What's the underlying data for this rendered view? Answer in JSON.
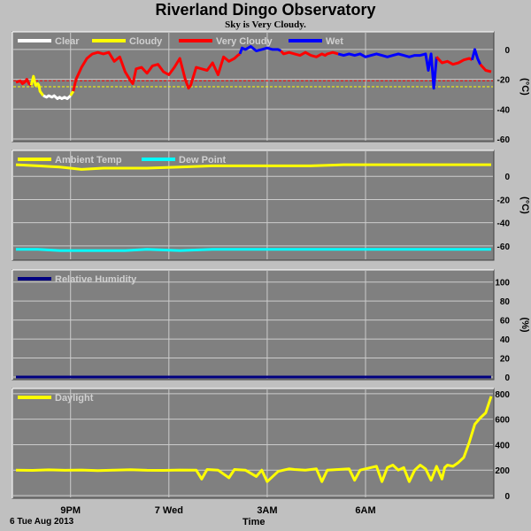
{
  "title": "Riverland Dingo Observatory",
  "subtitle": "Sky is Very Cloudy.",
  "date_label": "6 Tue Aug 2013",
  "x_axis_label": "Time",
  "colors": {
    "background": "#c0c0c0",
    "plot": "#808080",
    "grid": "#cccccc",
    "clear": "#ffffff",
    "cloudy": "#ffff00",
    "very_cloudy": "#ff0000",
    "wet": "#0000ff",
    "ambient": "#ffff00",
    "dew": "#00ffff",
    "humidity": "#000080",
    "daylight": "#ffff00"
  },
  "chart_data": [
    {
      "type": "line",
      "name": "sky",
      "legend": [
        "Clear",
        "Cloudy",
        "Very Cloudy",
        "Wet"
      ],
      "ylabel": "(°C)",
      "ylim": [
        -60,
        10
      ],
      "yticks": [
        0,
        -20,
        -40,
        -60
      ],
      "thresholds": [
        {
          "value": -25,
          "color": "#ffff00"
        },
        {
          "value": -21,
          "color": "#ff0000"
        }
      ],
      "series": [
        {
          "x": [
            0,
            0.8,
            1.2,
            1.6,
            2.0,
            2.4,
            2.8
          ],
          "y": [
            -22,
            -21,
            -23,
            -22,
            -20,
            -23,
            -24
          ],
          "legend": 2
        },
        {
          "x": [
            2.8,
            3.2,
            3.6,
            4.0,
            4.2,
            4.4,
            5.0
          ],
          "y": [
            -24,
            -18,
            -24,
            -23,
            -24,
            -28,
            -31
          ],
          "legend": 1
        },
        {
          "x": [
            5.0,
            5.6,
            6.0,
            6.6,
            7.0,
            7.6,
            8.0,
            8.4,
            8.9,
            9.4,
            10.0
          ],
          "y": [
            -31,
            -32,
            -31,
            -32,
            -31,
            -33,
            -32,
            -33,
            -32,
            -33,
            -31
          ],
          "legend": 0
        },
        {
          "x": [
            10.0,
            10.5
          ],
          "y": [
            -31,
            -28
          ],
          "legend": 1
        },
        {
          "x": [
            10.5,
            11,
            12,
            13,
            14,
            15,
            16,
            17,
            18,
            19,
            20,
            21,
            21.4,
            22,
            23,
            24,
            25,
            26,
            27,
            28,
            29,
            30,
            31,
            31.6,
            32,
            33,
            34,
            35,
            36,
            37,
            38,
            39,
            40,
            40.6,
            41
          ],
          "y": [
            -28,
            -20,
            -12,
            -6,
            -3,
            -2,
            -3,
            -2,
            -8,
            -5,
            -15,
            -21,
            -23,
            -13,
            -12,
            -16,
            -11,
            -10,
            -15,
            -17,
            -12,
            -6,
            -20,
            -26,
            -24,
            -12,
            -13,
            -14,
            -9,
            -17,
            -5,
            -8,
            -6,
            -4,
            -3
          ],
          "legend": 2
        },
        {
          "x": [
            41,
            41.4,
            42,
            43,
            44,
            45,
            46,
            47,
            48,
            48.5
          ],
          "y": [
            -3,
            1,
            0,
            2,
            -1,
            0,
            1,
            0,
            0,
            -1
          ],
          "legend": 3
        },
        {
          "x": [
            48.5,
            49,
            50,
            51,
            52,
            53,
            54,
            55,
            56,
            56.6,
            57,
            58,
            59
          ],
          "y": [
            -1,
            -3,
            -2,
            -3,
            -4,
            -2,
            -4,
            -5,
            -3,
            -4,
            -3,
            -2,
            -3
          ],
          "legend": 2
        },
        {
          "x": [
            59,
            60,
            61,
            62,
            63,
            64,
            65,
            66,
            67,
            68,
            69,
            70,
            71,
            72,
            73,
            74,
            75,
            75.5,
            76,
            76.5,
            77
          ],
          "y": [
            -3,
            -4,
            -3,
            -4,
            -3,
            -5,
            -4,
            -3,
            -4,
            -5,
            -4,
            -3,
            -4,
            -5,
            -4,
            -4,
            -3,
            -14,
            -3,
            -26,
            -5
          ],
          "legend": 3
        },
        {
          "x": [
            77,
            78,
            79,
            80,
            81,
            82,
            83,
            83.5
          ],
          "y": [
            -5,
            -9,
            -8,
            -10,
            -9,
            -7,
            -6,
            -7
          ],
          "legend": 2
        },
        {
          "x": [
            83.5,
            84,
            84.5,
            85
          ],
          "y": [
            -7,
            0,
            -6,
            -10
          ],
          "legend": 3
        },
        {
          "x": [
            85,
            86,
            87
          ],
          "y": [
            -10,
            -14,
            -15
          ],
          "legend": 2
        }
      ]
    },
    {
      "type": "line",
      "name": "temperature",
      "legend": [
        "Ambient Temp",
        "Dew Point"
      ],
      "ylabel": "(°C)",
      "ylim": [
        -70,
        20
      ],
      "yticks": [
        0,
        -20,
        -40,
        -60
      ],
      "series": [
        {
          "name": "Ambient Temp",
          "x": [
            0,
            4,
            8,
            12,
            16,
            20,
            24,
            30,
            36,
            42,
            48,
            54,
            60,
            66,
            72,
            78,
            84,
            87
          ],
          "y": [
            10,
            9,
            8,
            6,
            7,
            7,
            7,
            8,
            9,
            9,
            9,
            9,
            10,
            10,
            10,
            10,
            10,
            10
          ]
        },
        {
          "name": "Dew Point",
          "x": [
            0,
            4,
            8,
            12,
            16,
            20,
            24,
            30,
            36,
            42,
            48,
            54,
            60,
            66,
            72,
            78,
            84,
            87
          ],
          "y": [
            -63,
            -63,
            -64,
            -64,
            -64,
            -64,
            -63,
            -64,
            -63,
            -63,
            -63,
            -63,
            -63,
            -63,
            -63,
            -63,
            -63,
            -63
          ]
        }
      ]
    },
    {
      "type": "line",
      "name": "humidity",
      "legend": [
        "Relative Humidity"
      ],
      "ylabel": "(%)",
      "ylim": [
        0,
        110
      ],
      "yticks": [
        100,
        80,
        60,
        40,
        20,
        0
      ],
      "series": [
        {
          "name": "Relative Humidity",
          "x": [
            0,
            87
          ],
          "y": [
            0,
            0
          ]
        }
      ]
    },
    {
      "type": "line",
      "name": "daylight",
      "legend": [
        "Daylight"
      ],
      "ylabel": "",
      "ylim": [
        0,
        820
      ],
      "yticks": [
        800,
        600,
        400,
        200,
        0
      ],
      "series": [
        {
          "name": "Daylight",
          "x": [
            0,
            3,
            6,
            9,
            12,
            15,
            18,
            21,
            24,
            27,
            30,
            33,
            34,
            35,
            37,
            39,
            40,
            42,
            44,
            45,
            46,
            48,
            49,
            50,
            51,
            53,
            55,
            56,
            57,
            59,
            61,
            62,
            63,
            65,
            66,
            67,
            68,
            69,
            70,
            71,
            72,
            73,
            74,
            75,
            76,
            77,
            78,
            78.5,
            79,
            80,
            81,
            82,
            83,
            84,
            85,
            86,
            87
          ],
          "y": [
            200,
            198,
            202,
            199,
            201,
            197,
            200,
            203,
            199,
            198,
            201,
            200,
            130,
            205,
            200,
            140,
            205,
            200,
            150,
            200,
            110,
            190,
            200,
            210,
            205,
            200,
            210,
            110,
            200,
            205,
            210,
            120,
            200,
            220,
            230,
            110,
            220,
            240,
            200,
            220,
            110,
            200,
            240,
            210,
            120,
            230,
            130,
            220,
            240,
            230,
            260,
            300,
            420,
            560,
            610,
            650,
            780
          ]
        }
      ]
    }
  ],
  "x_axis": {
    "ticks": [
      {
        "x": 10,
        "label": "9PM"
      },
      {
        "x": 28,
        "label": "7 Wed"
      },
      {
        "x": 46,
        "label": "3AM"
      },
      {
        "x": 64,
        "label": "6AM"
      }
    ],
    "xlim": [
      0,
      87
    ]
  }
}
